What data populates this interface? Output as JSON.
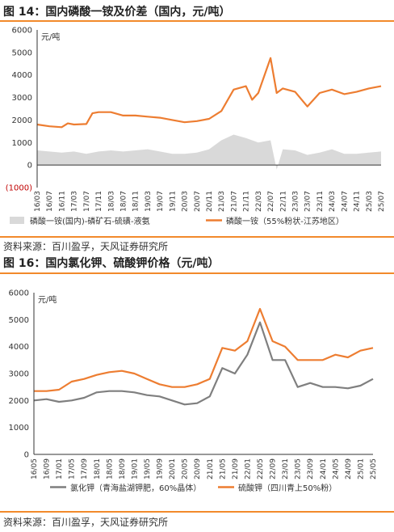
{
  "chart_data": [
    {
      "type": "line",
      "title": "图 14：国内磷酸一铵及价差（国内，元/吨）",
      "unit_label": "元/吨",
      "ylim": [
        -1000,
        6000
      ],
      "yticks": [
        "6000",
        "5000",
        "4000",
        "3000",
        "2000",
        "1000",
        "0",
        "(1000)"
      ],
      "x_tick_labels": [
        "16/03",
        "16/07",
        "16/11",
        "17/03",
        "17/07",
        "17/11",
        "18/03",
        "18/07",
        "18/11",
        "19/03",
        "19/07",
        "19/11",
        "20/03",
        "20/07",
        "20/11",
        "21/03",
        "21/07",
        "21/11",
        "22/03",
        "22/07",
        "22/11",
        "23/03",
        "23/07",
        "23/11",
        "24/03",
        "24/07",
        "24/11",
        "25/03",
        "25/07"
      ],
      "grid": false,
      "legend_position": "bottom",
      "series": [
        {
          "name": "磷酸一铵(国内)-磷矿石-硫磺-液氨",
          "kind": "area",
          "color": "#d9d9d9",
          "points": [
            [
              "2016-03",
              650
            ],
            [
              "2016-07",
              600
            ],
            [
              "2016-11",
              550
            ],
            [
              "2017-03",
              600
            ],
            [
              "2017-07",
              500
            ],
            [
              "2017-11",
              600
            ],
            [
              "2018-03",
              650
            ],
            [
              "2018-07",
              600
            ],
            [
              "2018-11",
              650
            ],
            [
              "2019-03",
              700
            ],
            [
              "2019-07",
              600
            ],
            [
              "2019-11",
              500
            ],
            [
              "2020-03",
              500
            ],
            [
              "2020-07",
              550
            ],
            [
              "2020-11",
              700
            ],
            [
              "2021-03",
              1100
            ],
            [
              "2021-07",
              1350
            ],
            [
              "2021-11",
              1200
            ],
            [
              "2022-03",
              1000
            ],
            [
              "2022-07",
              1100
            ],
            [
              "2022-09",
              -200
            ],
            [
              "2022-11",
              700
            ],
            [
              "2023-03",
              650
            ],
            [
              "2023-07",
              450
            ],
            [
              "2023-11",
              550
            ],
            [
              "2024-03",
              700
            ],
            [
              "2024-07",
              500
            ],
            [
              "2024-11",
              500
            ],
            [
              "2025-03",
              550
            ],
            [
              "2025-07",
              600
            ]
          ]
        },
        {
          "name": "磷酸一铵（55%粉状-江苏地区）",
          "kind": "line",
          "color": "#ed7d31",
          "points": [
            [
              "2016-03",
              1800
            ],
            [
              "2016-07",
              1720
            ],
            [
              "2016-11",
              1680
            ],
            [
              "2017-01",
              1850
            ],
            [
              "2017-03",
              1800
            ],
            [
              "2017-07",
              1820
            ],
            [
              "2017-09",
              2300
            ],
            [
              "2017-11",
              2350
            ],
            [
              "2018-03",
              2350
            ],
            [
              "2018-07",
              2200
            ],
            [
              "2018-11",
              2200
            ],
            [
              "2019-03",
              2150
            ],
            [
              "2019-07",
              2100
            ],
            [
              "2019-11",
              2000
            ],
            [
              "2020-03",
              1900
            ],
            [
              "2020-07",
              1950
            ],
            [
              "2020-11",
              2050
            ],
            [
              "2021-03",
              2400
            ],
            [
              "2021-07",
              3350
            ],
            [
              "2021-11",
              3500
            ],
            [
              "2022-01",
              2900
            ],
            [
              "2022-03",
              3200
            ],
            [
              "2022-07",
              4750
            ],
            [
              "2022-09",
              3200
            ],
            [
              "2022-11",
              3400
            ],
            [
              "2023-03",
              3250
            ],
            [
              "2023-07",
              2600
            ],
            [
              "2023-11",
              3200
            ],
            [
              "2024-03",
              3350
            ],
            [
              "2024-07",
              3150
            ],
            [
              "2024-11",
              3250
            ],
            [
              "2025-03",
              3400
            ],
            [
              "2025-07",
              3500
            ]
          ]
        }
      ]
    },
    {
      "type": "line",
      "title": "图 16：国内氯化钾、硫酸钾价格（元/吨）",
      "unit_label": "元/吨",
      "ylim": [
        0,
        6000
      ],
      "yticks": [
        "6000",
        "5000",
        "4000",
        "3000",
        "2000",
        "1000",
        "0"
      ],
      "x_tick_labels": [
        "16/05",
        "16/09",
        "17/01",
        "17/05",
        "17/09",
        "18/01",
        "18/05",
        "18/09",
        "19/01",
        "19/05",
        "19/09",
        "20/01",
        "20/05",
        "20/09",
        "21/01",
        "21/05",
        "21/09",
        "22/01",
        "22/05",
        "22/09",
        "23/01",
        "23/05",
        "23/09",
        "24/01",
        "24/05",
        "24/09",
        "25/01",
        "25/05"
      ],
      "grid": false,
      "legend_position": "bottom",
      "series": [
        {
          "name": "氯化钾（青海盐湖钾肥，60%晶体）",
          "color": "#7f7f7f",
          "points": [
            [
              "2016-05",
              2000
            ],
            [
              "2016-09",
              2050
            ],
            [
              "2017-01",
              1950
            ],
            [
              "2017-05",
              2000
            ],
            [
              "2017-09",
              2100
            ],
            [
              "2018-01",
              2300
            ],
            [
              "2018-05",
              2350
            ],
            [
              "2018-09",
              2350
            ],
            [
              "2019-01",
              2300
            ],
            [
              "2019-05",
              2200
            ],
            [
              "2019-09",
              2150
            ],
            [
              "2020-01",
              2000
            ],
            [
              "2020-05",
              1850
            ],
            [
              "2020-09",
              1900
            ],
            [
              "2021-01",
              2150
            ],
            [
              "2021-05",
              3200
            ],
            [
              "2021-09",
              3000
            ],
            [
              "2022-01",
              3700
            ],
            [
              "2022-05",
              4900
            ],
            [
              "2022-09",
              3500
            ],
            [
              "2023-01",
              3500
            ],
            [
              "2023-05",
              2500
            ],
            [
              "2023-09",
              2650
            ],
            [
              "2024-01",
              2500
            ],
            [
              "2024-05",
              2500
            ],
            [
              "2024-09",
              2450
            ],
            [
              "2025-01",
              2550
            ],
            [
              "2025-05",
              2800
            ]
          ]
        },
        {
          "name": "硫酸钾（四川青上50%粉）",
          "color": "#ed7d31",
          "points": [
            [
              "2016-05",
              2350
            ],
            [
              "2016-09",
              2350
            ],
            [
              "2017-01",
              2400
            ],
            [
              "2017-05",
              2700
            ],
            [
              "2017-09",
              2800
            ],
            [
              "2018-01",
              2950
            ],
            [
              "2018-05",
              3050
            ],
            [
              "2018-09",
              3100
            ],
            [
              "2019-01",
              3000
            ],
            [
              "2019-05",
              2800
            ],
            [
              "2019-09",
              2600
            ],
            [
              "2020-01",
              2500
            ],
            [
              "2020-05",
              2500
            ],
            [
              "2020-09",
              2600
            ],
            [
              "2021-01",
              2800
            ],
            [
              "2021-05",
              3950
            ],
            [
              "2021-09",
              3850
            ],
            [
              "2022-01",
              4200
            ],
            [
              "2022-05",
              5400
            ],
            [
              "2022-09",
              4200
            ],
            [
              "2023-01",
              4000
            ],
            [
              "2023-05",
              3500
            ],
            [
              "2023-09",
              3500
            ],
            [
              "2024-01",
              3500
            ],
            [
              "2024-05",
              3700
            ],
            [
              "2024-09",
              3600
            ],
            [
              "2025-01",
              3850
            ],
            [
              "2025-05",
              3950
            ]
          ]
        }
      ]
    }
  ],
  "source_text_1": "资料来源：百川盈孚，天风证券研究所",
  "source_text_2": "资料来源：百川盈孚，天风证券研究所",
  "colors": {
    "accent_rule": "#f28a2b"
  }
}
